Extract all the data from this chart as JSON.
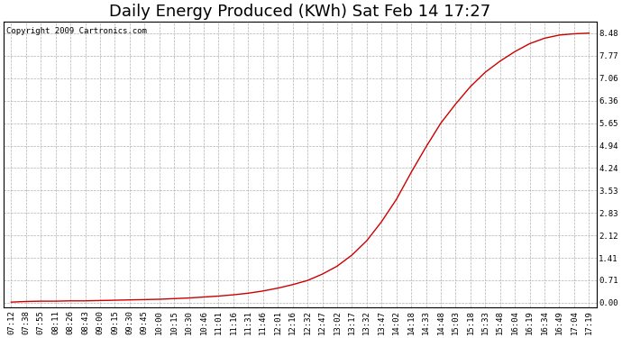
{
  "title": "Daily Energy Produced (KWh) Sat Feb 14 17:27",
  "copyright_text": "Copyright 2009 Cartronics.com",
  "line_color": "#cc0000",
  "background_color": "#ffffff",
  "plot_bg_color": "#ffffff",
  "grid_color": "#b0b0b0",
  "grid_style": "--",
  "yticks": [
    0.0,
    0.71,
    1.41,
    2.12,
    2.83,
    3.53,
    4.24,
    4.94,
    5.65,
    6.36,
    7.06,
    7.77,
    8.48
  ],
  "ylim": [
    0.0,
    8.48
  ],
  "xtick_labels": [
    "07:12",
    "07:38",
    "07:55",
    "08:11",
    "08:26",
    "08:43",
    "09:00",
    "09:15",
    "09:30",
    "09:45",
    "10:00",
    "10:15",
    "10:30",
    "10:46",
    "11:01",
    "11:16",
    "11:31",
    "11:46",
    "12:01",
    "12:16",
    "12:32",
    "12:47",
    "13:02",
    "13:17",
    "13:32",
    "13:47",
    "14:02",
    "14:18",
    "14:33",
    "14:48",
    "15:03",
    "15:18",
    "15:33",
    "15:48",
    "16:04",
    "16:19",
    "16:34",
    "16:49",
    "17:04",
    "17:19"
  ],
  "title_fontsize": 13,
  "tick_fontsize": 6.5,
  "copyright_fontsize": 6.5,
  "y_values": [
    0.02,
    0.04,
    0.05,
    0.05,
    0.06,
    0.06,
    0.07,
    0.08,
    0.09,
    0.1,
    0.11,
    0.13,
    0.15,
    0.18,
    0.21,
    0.25,
    0.3,
    0.37,
    0.46,
    0.57,
    0.7,
    0.9,
    1.15,
    1.5,
    1.95,
    2.55,
    3.25,
    4.1,
    4.9,
    5.65,
    6.25,
    6.8,
    7.25,
    7.6,
    7.9,
    8.15,
    8.32,
    8.42,
    8.46,
    8.48
  ]
}
